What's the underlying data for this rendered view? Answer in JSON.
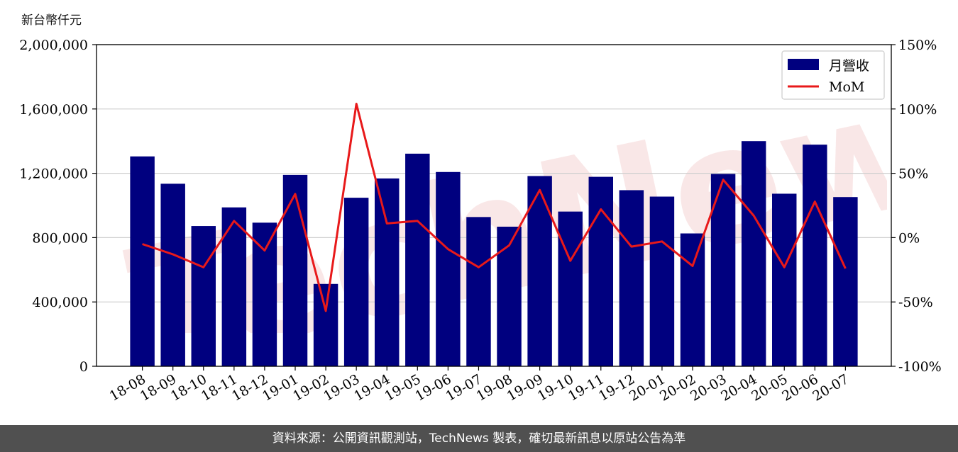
{
  "unit_label": "新台幣仟元",
  "footer_text": "資料來源：公開資訊觀測站，TechNews 製表，確切最新訊息以原站公告為準",
  "watermark_text": "TechNews",
  "colors": {
    "bar": "#00007f",
    "line": "#e8191a",
    "grid": "#cfcfcf",
    "footer_bg": "#505050",
    "watermark": "#f5cccc"
  },
  "chart_data": {
    "type": "bar",
    "categories": [
      "18-08",
      "18-09",
      "18-10",
      "18-11",
      "18-12",
      "19-01",
      "19-02",
      "19-03",
      "19-04",
      "19-05",
      "19-06",
      "19-07",
      "19-08",
      "19-09",
      "19-10",
      "19-11",
      "19-12",
      "20-01",
      "20-02",
      "20-03",
      "20-04",
      "20-05",
      "20-06",
      "20-07"
    ],
    "series": [
      {
        "name": "月營收",
        "type": "bar",
        "axis": "left",
        "values": [
          1305000,
          1135000,
          872000,
          988000,
          893000,
          1190000,
          512000,
          1048000,
          1168000,
          1322000,
          1208000,
          928000,
          868000,
          1183000,
          962000,
          1178000,
          1095000,
          1055000,
          826000,
          1196000,
          1400000,
          1073000,
          1378000,
          1052000
        ]
      },
      {
        "name": "MoM",
        "type": "line",
        "axis": "right",
        "unit": "%",
        "values": [
          -5,
          -13,
          -23,
          13,
          -10,
          34,
          -57,
          104,
          11,
          13,
          -9,
          -23,
          -6,
          37,
          -18,
          22,
          -7,
          -3,
          -22,
          45,
          17,
          -23,
          28,
          -24
        ]
      }
    ],
    "y_left": {
      "min": 0,
      "max": 2000000,
      "ticks": [
        "0",
        "400,000",
        "800,000",
        "1,200,000",
        "1,600,000",
        "2,000,000"
      ],
      "tick_values": [
        0,
        400000,
        800000,
        1200000,
        1600000,
        2000000
      ]
    },
    "y_right": {
      "min": -100,
      "max": 150,
      "ticks": [
        "-100%",
        "-50%",
        "0%",
        "50%",
        "100%",
        "150%"
      ],
      "tick_values": [
        -100,
        -50,
        0,
        50,
        100,
        150
      ]
    },
    "grid": true,
    "legend": "top-right"
  }
}
